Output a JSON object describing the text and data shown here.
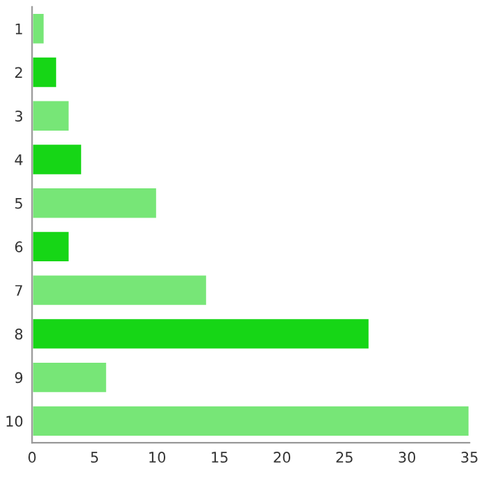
{
  "chart_data": {
    "type": "bar",
    "orientation": "horizontal",
    "categories": [
      "1",
      "2",
      "3",
      "4",
      "5",
      "6",
      "7",
      "8",
      "9",
      "10"
    ],
    "values": [
      1,
      2,
      3,
      4,
      10,
      3,
      14,
      27,
      6,
      35
    ],
    "colors": [
      "#77e677",
      "#16d616",
      "#77e677",
      "#16d616",
      "#77e677",
      "#16d616",
      "#77e677",
      "#16d616",
      "#77e677",
      "#77e677"
    ],
    "xlim": [
      0,
      35
    ],
    "xticks": [
      0,
      5,
      10,
      15,
      20,
      25,
      30,
      35
    ],
    "grid": false,
    "legend": false
  }
}
